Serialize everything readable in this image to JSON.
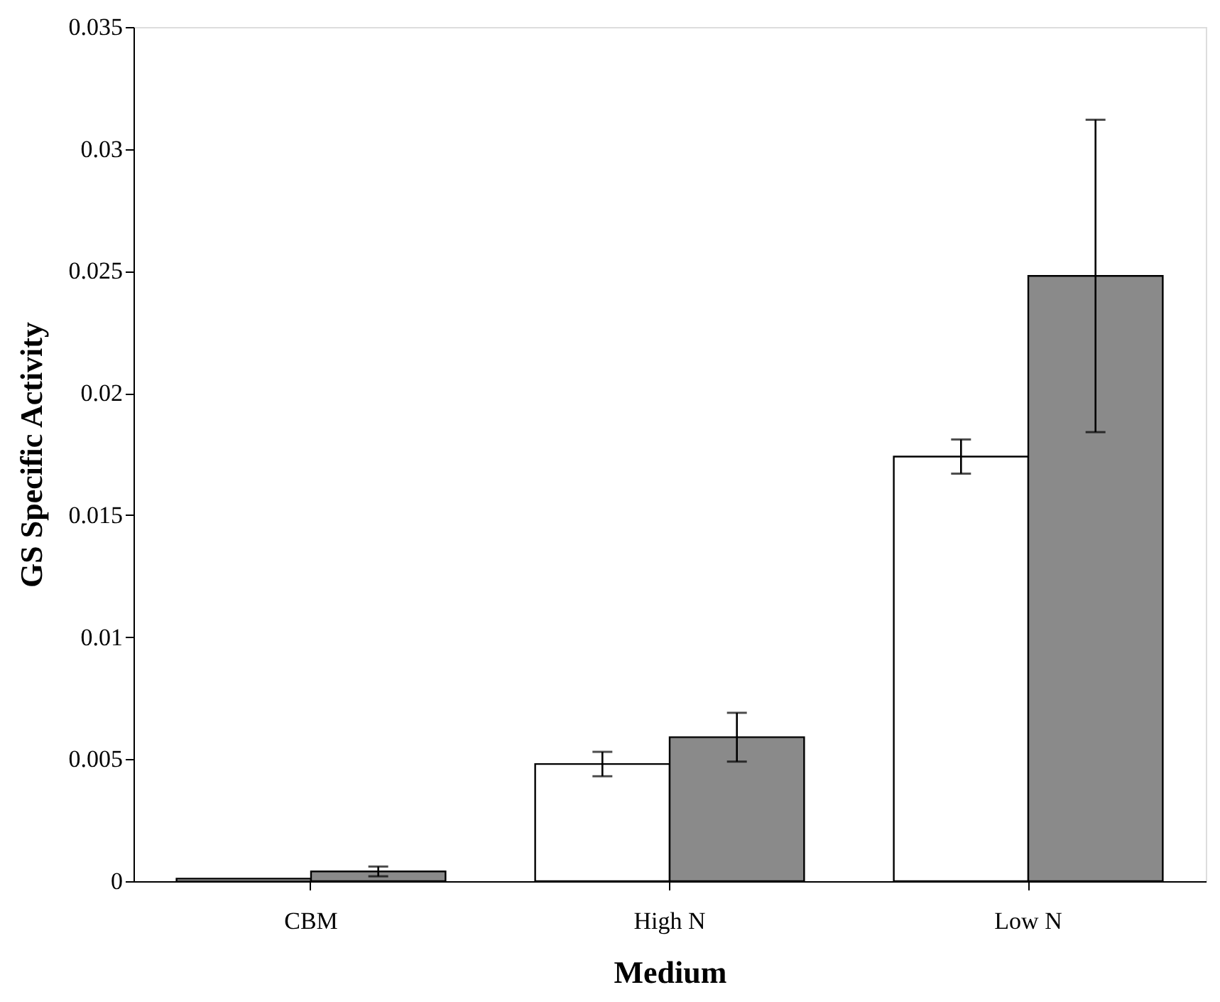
{
  "chart_data": {
    "type": "bar",
    "xlabel": "Medium",
    "ylabel": "GS Specific Activity",
    "categories": [
      "CBM",
      "High N",
      "Low N"
    ],
    "series": [
      {
        "color": "#ffffff",
        "values": [
          0.0001,
          0.0048,
          0.0174
        ],
        "errors": [
          null,
          0.0005,
          0.0007
        ]
      },
      {
        "color": "#8a8a8a",
        "values": [
          0.0004,
          0.0059,
          0.0248
        ],
        "errors": [
          0.0002,
          0.001,
          0.0064
        ]
      }
    ],
    "ylim": [
      0,
      0.035
    ],
    "yticks": [
      0,
      0.005,
      0.01,
      0.015,
      0.02,
      0.025,
      0.03,
      0.035
    ],
    "grid": false,
    "legend": false
  }
}
